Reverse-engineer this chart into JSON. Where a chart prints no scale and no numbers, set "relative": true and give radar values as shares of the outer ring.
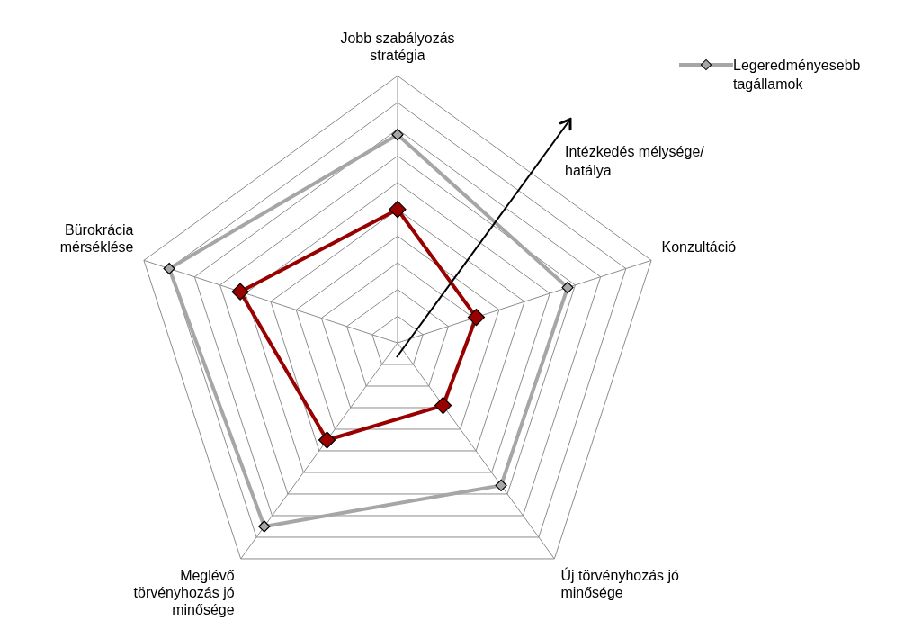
{
  "chart_data": {
    "type": "radar",
    "relative": true,
    "categories": [
      "Jobb szabályozás stratégia",
      "Konzultáció",
      "Új törvényhozás jó minősége",
      "Meglévő törvényhozás jó minősége",
      "Bürokrácia mérséklése"
    ],
    "series": [
      {
        "name": "Legeredményesebb tagállamok",
        "color": "#a6a6a6",
        "values": [
          0.78,
          0.67,
          0.66,
          0.85,
          0.9
        ]
      },
      {
        "color": "#990000",
        "values": [
          0.5,
          0.31,
          0.29,
          0.45,
          0.62
        ]
      }
    ],
    "marker": "diamond",
    "line_style": "solid",
    "grid": true,
    "legend": "top right",
    "annotations": [
      "Intézkedés mélysége/ hatálya"
    ]
  }
}
